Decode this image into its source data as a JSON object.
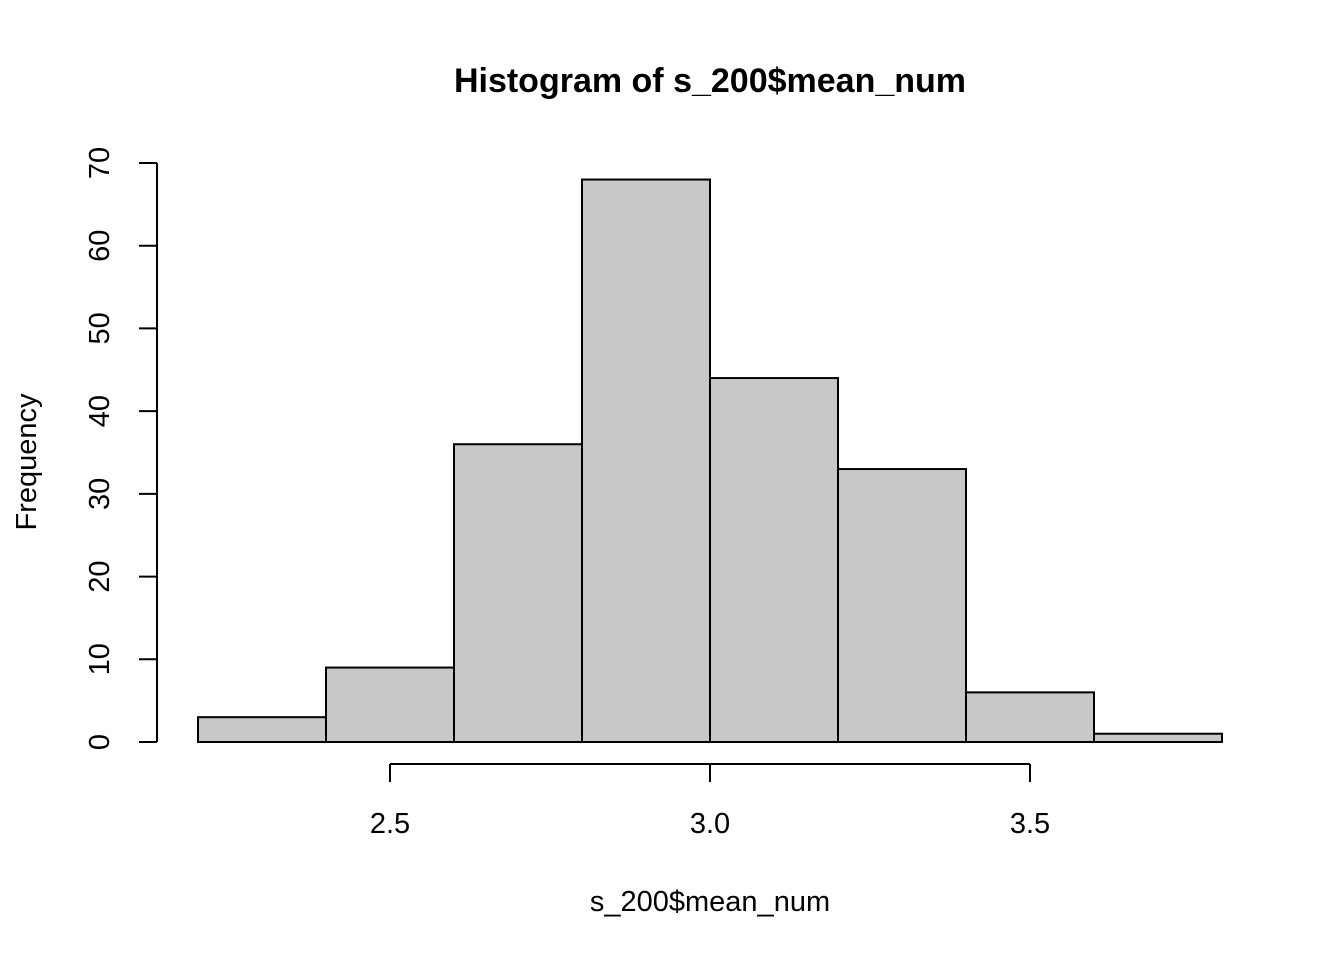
{
  "chart_data": {
    "type": "bar",
    "title": "Histogram of s_200$mean_num",
    "xlabel": "s_200$mean_num",
    "ylabel": "Frequency",
    "bins": [
      {
        "start": 2.2,
        "end": 2.4,
        "count": 3
      },
      {
        "start": 2.4,
        "end": 2.6,
        "count": 9
      },
      {
        "start": 2.6,
        "end": 2.8,
        "count": 36
      },
      {
        "start": 2.8,
        "end": 3.0,
        "count": 68
      },
      {
        "start": 3.0,
        "end": 3.2,
        "count": 44
      },
      {
        "start": 3.2,
        "end": 3.4,
        "count": 33
      },
      {
        "start": 3.4,
        "end": 3.6,
        "count": 6
      },
      {
        "start": 3.6,
        "end": 3.8,
        "count": 1
      }
    ],
    "x_ticks": [
      2.5,
      3.0,
      3.5
    ],
    "x_tick_labels": [
      "2.5",
      "3.0",
      "3.5"
    ],
    "y_ticks": [
      0,
      10,
      20,
      30,
      40,
      50,
      60,
      70
    ],
    "y_tick_labels": [
      "0",
      "10",
      "20",
      "30",
      "40",
      "50",
      "60",
      "70"
    ],
    "xlim": [
      2.2,
      3.8
    ],
    "ylim": [
      0,
      70
    ],
    "bar_color": "#c8c8c8",
    "grid": false,
    "legend": "none"
  }
}
